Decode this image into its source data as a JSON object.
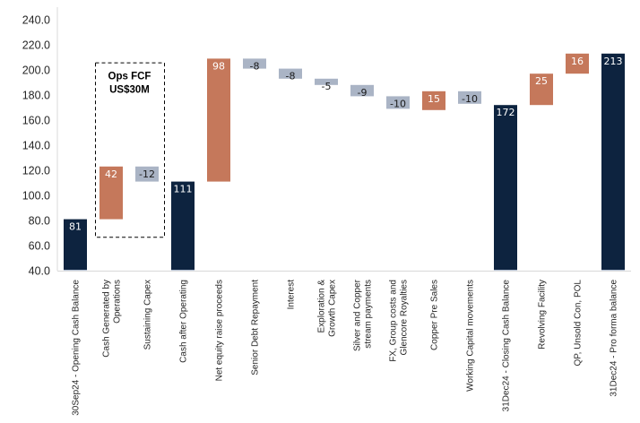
{
  "chart_data": {
    "type": "bar",
    "subtype": "waterfall",
    "title": "",
    "xlabel": "",
    "ylabel": "",
    "ylim": [
      40,
      240
    ],
    "yticks": [
      "40.0",
      "60.0",
      "80.0",
      "100.0",
      "120.0",
      "140.0",
      "160.0",
      "180.0",
      "200.0",
      "220.0",
      "240.0"
    ],
    "grid": false,
    "legend": "none",
    "colors": {
      "total": "#0d233f",
      "increase": "#c5785b",
      "decrease": "#aab4c5",
      "total_label": "#ffffff",
      "increase_label": "#ffffff",
      "decrease_label": "#1a1a1a"
    },
    "categories": [
      "30Sep24 - Opening Cash Balance",
      "Cash Generated by Operations",
      "Sustaining Capex",
      "Cash after Operating",
      "Net equity raise proceeds",
      "Senior Debt Repayment",
      "Interest",
      "Exploration & Growth Capex",
      "Silver and Copper stream payments",
      "FX, Group costs and Glencore Royalties",
      "Copper Pre Sales",
      "Working Capital movements",
      "31Dec24 - Closing Cash Balance",
      "Revolving Facility",
      "QP, Unsold Con, POL",
      "31Dec24 - Pro forma balance"
    ],
    "category_lines": [
      [
        "30Sep24 - Opening Cash Balance"
      ],
      [
        "Cash Generated by",
        "Operations"
      ],
      [
        "Sustaining Capex"
      ],
      [
        "Cash after Operating"
      ],
      [
        "Net equity raise proceeds"
      ],
      [
        "Senior Debt Repayment"
      ],
      [
        "Interest"
      ],
      [
        "Exploration &",
        "Growth Capex"
      ],
      [
        "Silver and Copper",
        "stream payments"
      ],
      [
        "FX, Group costs and",
        "Glencore Royalties"
      ],
      [
        "Copper Pre Sales"
      ],
      [
        "Working Capital movements"
      ],
      [
        "31Dec24 - Closing Cash Balance"
      ],
      [
        "Revolving Facility"
      ],
      [
        "QP, Unsold Con, POL"
      ],
      [
        "31Dec24 - Pro forma balance"
      ]
    ],
    "bars": [
      {
        "kind": "total",
        "start": 40,
        "end": 81,
        "label": "81"
      },
      {
        "kind": "increase",
        "start": 81,
        "end": 123,
        "label": "42"
      },
      {
        "kind": "decrease",
        "start": 123,
        "end": 111,
        "label": "-12"
      },
      {
        "kind": "total",
        "start": 40,
        "end": 111,
        "label": "111"
      },
      {
        "kind": "increase",
        "start": 111,
        "end": 209,
        "label": "98"
      },
      {
        "kind": "decrease",
        "start": 209,
        "end": 201,
        "label": "-8"
      },
      {
        "kind": "decrease",
        "start": 201,
        "end": 193,
        "label": "-8"
      },
      {
        "kind": "decrease",
        "start": 193,
        "end": 188,
        "label": "-5"
      },
      {
        "kind": "decrease",
        "start": 188,
        "end": 179,
        "label": "-9"
      },
      {
        "kind": "decrease",
        "start": 179,
        "end": 169,
        "label": "-10"
      },
      {
        "kind": "increase",
        "start": 168,
        "end": 183,
        "label": "15"
      },
      {
        "kind": "decrease",
        "start": 183,
        "end": 173,
        "label": "-10"
      },
      {
        "kind": "total",
        "start": 40,
        "end": 172,
        "label": "172"
      },
      {
        "kind": "increase",
        "start": 172,
        "end": 197,
        "label": "25"
      },
      {
        "kind": "increase",
        "start": 197,
        "end": 213,
        "label": "16"
      },
      {
        "kind": "total",
        "start": 40,
        "end": 213,
        "label": "213"
      }
    ],
    "annotations": [
      {
        "lines": [
          "Ops FCF",
          "US$30M"
        ],
        "style": "dashed-box",
        "spans_categories": [
          1,
          2
        ],
        "y_range": [
          67,
          206
        ]
      }
    ]
  }
}
